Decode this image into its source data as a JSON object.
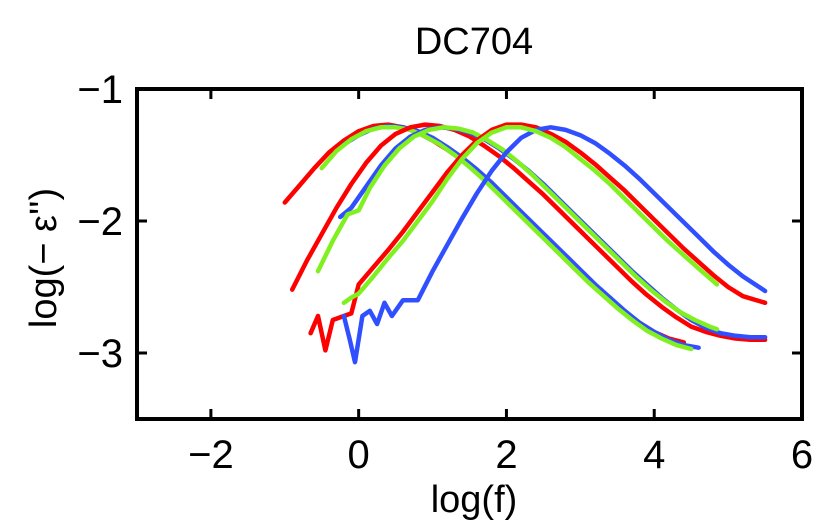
{
  "chart_data": {
    "type": "line",
    "title": "DC704",
    "xlabel": "log(f)",
    "ylabel": "log(− ε'')",
    "xlim": [
      -3,
      6
    ],
    "ylim": [
      -3.5,
      -1
    ],
    "xticks": [
      -2,
      0,
      2,
      4,
      6
    ],
    "yticks": [
      -1,
      -2,
      -3
    ],
    "xtick_labels": [
      "−2",
      "0",
      "2",
      "4",
      "6"
    ],
    "ytick_labels": [
      "−1",
      "−2",
      "−3"
    ],
    "grid": false,
    "legend": null,
    "series": [
      {
        "name": "red-1",
        "color": "#ff0000",
        "points": [
          [
            -1.0,
            -1.86
          ],
          [
            -0.8,
            -1.73
          ],
          [
            -0.6,
            -1.6
          ],
          [
            -0.4,
            -1.48
          ],
          [
            -0.2,
            -1.39
          ],
          [
            0.0,
            -1.32
          ],
          [
            0.2,
            -1.28
          ],
          [
            0.4,
            -1.27
          ],
          [
            0.6,
            -1.29
          ],
          [
            0.8,
            -1.33
          ],
          [
            1.0,
            -1.39
          ],
          [
            1.2,
            -1.46
          ],
          [
            1.4,
            -1.54
          ],
          [
            1.6,
            -1.63
          ],
          [
            1.8,
            -1.73
          ],
          [
            2.0,
            -1.84
          ],
          [
            2.2,
            -1.95
          ],
          [
            2.4,
            -2.06
          ],
          [
            2.6,
            -2.17
          ],
          [
            2.8,
            -2.28
          ],
          [
            3.0,
            -2.39
          ],
          [
            3.2,
            -2.5
          ],
          [
            3.4,
            -2.6
          ],
          [
            3.6,
            -2.69
          ],
          [
            3.8,
            -2.77
          ],
          [
            4.0,
            -2.84
          ],
          [
            4.2,
            -2.89
          ],
          [
            4.4,
            -2.92
          ]
        ]
      },
      {
        "name": "blue-1",
        "color": "#3050ff",
        "points": [
          [
            -0.2,
            -1.42
          ],
          [
            0.0,
            -1.35
          ],
          [
            0.2,
            -1.3
          ],
          [
            0.4,
            -1.28
          ],
          [
            0.6,
            -1.29
          ],
          [
            0.8,
            -1.32
          ],
          [
            1.0,
            -1.37
          ],
          [
            1.2,
            -1.44
          ],
          [
            1.4,
            -1.52
          ],
          [
            1.6,
            -1.61
          ],
          [
            1.8,
            -1.71
          ],
          [
            2.0,
            -1.82
          ],
          [
            2.2,
            -1.93
          ],
          [
            2.4,
            -2.04
          ],
          [
            2.6,
            -2.15
          ],
          [
            2.8,
            -2.26
          ],
          [
            3.0,
            -2.37
          ],
          [
            3.2,
            -2.48
          ],
          [
            3.4,
            -2.58
          ],
          [
            3.6,
            -2.68
          ],
          [
            3.8,
            -2.77
          ],
          [
            4.0,
            -2.84
          ],
          [
            4.2,
            -2.9
          ],
          [
            4.4,
            -2.94
          ],
          [
            4.6,
            -2.96
          ]
        ]
      },
      {
        "name": "green-1",
        "color": "#80f020",
        "points": [
          [
            -0.5,
            -1.6
          ],
          [
            -0.3,
            -1.47
          ],
          [
            -0.1,
            -1.38
          ],
          [
            0.1,
            -1.32
          ],
          [
            0.3,
            -1.29
          ],
          [
            0.5,
            -1.29
          ],
          [
            0.7,
            -1.31
          ],
          [
            0.9,
            -1.36
          ],
          [
            1.1,
            -1.42
          ],
          [
            1.3,
            -1.5
          ],
          [
            1.5,
            -1.59
          ],
          [
            1.7,
            -1.69
          ],
          [
            1.9,
            -1.8
          ],
          [
            2.1,
            -1.91
          ],
          [
            2.3,
            -2.02
          ],
          [
            2.5,
            -2.13
          ],
          [
            2.7,
            -2.24
          ],
          [
            2.9,
            -2.35
          ],
          [
            3.1,
            -2.46
          ],
          [
            3.3,
            -2.56
          ],
          [
            3.5,
            -2.66
          ],
          [
            3.7,
            -2.75
          ],
          [
            3.9,
            -2.83
          ],
          [
            4.1,
            -2.89
          ],
          [
            4.3,
            -2.94
          ],
          [
            4.5,
            -2.97
          ]
        ]
      },
      {
        "name": "red-2",
        "color": "#ff0000",
        "points": [
          [
            -0.9,
            -2.52
          ],
          [
            -0.7,
            -2.3
          ],
          [
            -0.5,
            -2.1
          ],
          [
            -0.3,
            -1.9
          ],
          [
            -0.1,
            -1.72
          ],
          [
            0.1,
            -1.56
          ],
          [
            0.3,
            -1.43
          ],
          [
            0.5,
            -1.34
          ],
          [
            0.7,
            -1.29
          ],
          [
            0.9,
            -1.27
          ],
          [
            1.1,
            -1.28
          ],
          [
            1.3,
            -1.31
          ],
          [
            1.5,
            -1.36
          ],
          [
            1.7,
            -1.43
          ],
          [
            1.9,
            -1.51
          ],
          [
            2.1,
            -1.6
          ],
          [
            2.3,
            -1.7
          ],
          [
            2.5,
            -1.8
          ],
          [
            2.7,
            -1.91
          ],
          [
            2.9,
            -2.02
          ],
          [
            3.1,
            -2.13
          ],
          [
            3.3,
            -2.24
          ],
          [
            3.5,
            -2.35
          ],
          [
            3.7,
            -2.46
          ],
          [
            3.9,
            -2.56
          ],
          [
            4.1,
            -2.65
          ],
          [
            4.3,
            -2.73
          ],
          [
            4.5,
            -2.8
          ],
          [
            4.7,
            -2.84
          ],
          [
            4.9,
            -2.87
          ],
          [
            5.1,
            -2.89
          ],
          [
            5.3,
            -2.9
          ],
          [
            5.5,
            -2.9
          ]
        ]
      },
      {
        "name": "blue-2",
        "color": "#3050ff",
        "points": [
          [
            -0.25,
            -1.97
          ],
          [
            -0.1,
            -1.9
          ],
          [
            0.1,
            -1.74
          ],
          [
            0.3,
            -1.58
          ],
          [
            0.5,
            -1.45
          ],
          [
            0.7,
            -1.36
          ],
          [
            0.9,
            -1.31
          ],
          [
            1.1,
            -1.29
          ],
          [
            1.3,
            -1.3
          ],
          [
            1.5,
            -1.33
          ],
          [
            1.7,
            -1.38
          ],
          [
            1.9,
            -1.45
          ],
          [
            2.1,
            -1.53
          ],
          [
            2.3,
            -1.62
          ],
          [
            2.5,
            -1.72
          ],
          [
            2.7,
            -1.83
          ],
          [
            2.9,
            -1.94
          ],
          [
            3.1,
            -2.05
          ],
          [
            3.3,
            -2.16
          ],
          [
            3.5,
            -2.27
          ],
          [
            3.7,
            -2.38
          ],
          [
            3.9,
            -2.48
          ],
          [
            4.1,
            -2.58
          ],
          [
            4.3,
            -2.67
          ],
          [
            4.5,
            -2.75
          ],
          [
            4.7,
            -2.81
          ],
          [
            4.9,
            -2.85
          ],
          [
            5.1,
            -2.87
          ],
          [
            5.3,
            -2.88
          ],
          [
            5.5,
            -2.88
          ]
        ]
      },
      {
        "name": "green-2",
        "color": "#80f020",
        "points": [
          [
            -0.55,
            -2.38
          ],
          [
            -0.35,
            -2.15
          ],
          [
            -0.15,
            -1.95
          ],
          [
            0.0,
            -1.92
          ],
          [
            0.15,
            -1.75
          ],
          [
            0.35,
            -1.58
          ],
          [
            0.55,
            -1.45
          ],
          [
            0.75,
            -1.36
          ],
          [
            0.95,
            -1.31
          ],
          [
            1.15,
            -1.29
          ],
          [
            1.35,
            -1.3
          ],
          [
            1.55,
            -1.33
          ],
          [
            1.75,
            -1.39
          ],
          [
            1.95,
            -1.46
          ],
          [
            2.15,
            -1.55
          ],
          [
            2.35,
            -1.65
          ],
          [
            2.55,
            -1.76
          ],
          [
            2.75,
            -1.87
          ],
          [
            2.95,
            -1.98
          ],
          [
            3.15,
            -2.09
          ],
          [
            3.35,
            -2.2
          ],
          [
            3.55,
            -2.31
          ],
          [
            3.75,
            -2.42
          ],
          [
            3.95,
            -2.52
          ],
          [
            4.15,
            -2.61
          ],
          [
            4.35,
            -2.69
          ],
          [
            4.55,
            -2.75
          ],
          [
            4.75,
            -2.8
          ],
          [
            4.85,
            -2.82
          ]
        ]
      },
      {
        "name": "red-3",
        "color": "#ff0000",
        "points": [
          [
            -0.65,
            -2.85
          ],
          [
            -0.55,
            -2.72
          ],
          [
            -0.45,
            -2.98
          ],
          [
            -0.35,
            -2.75
          ],
          [
            -0.2,
            -2.72
          ],
          [
            -0.1,
            -2.7
          ],
          [
            0.0,
            -2.48
          ],
          [
            0.2,
            -2.35
          ],
          [
            0.4,
            -2.22
          ],
          [
            0.6,
            -2.08
          ],
          [
            0.8,
            -1.93
          ],
          [
            1.0,
            -1.78
          ],
          [
            1.2,
            -1.63
          ],
          [
            1.4,
            -1.5
          ],
          [
            1.6,
            -1.39
          ],
          [
            1.8,
            -1.31
          ],
          [
            2.0,
            -1.27
          ],
          [
            2.2,
            -1.27
          ],
          [
            2.4,
            -1.29
          ],
          [
            2.6,
            -1.34
          ],
          [
            2.8,
            -1.4
          ],
          [
            3.0,
            -1.48
          ],
          [
            3.2,
            -1.57
          ],
          [
            3.4,
            -1.67
          ],
          [
            3.6,
            -1.77
          ],
          [
            3.8,
            -1.88
          ],
          [
            4.0,
            -1.99
          ],
          [
            4.2,
            -2.1
          ],
          [
            4.4,
            -2.21
          ],
          [
            4.6,
            -2.31
          ],
          [
            4.8,
            -2.41
          ],
          [
            5.0,
            -2.5
          ],
          [
            5.2,
            -2.57
          ],
          [
            5.5,
            -2.62
          ]
        ]
      },
      {
        "name": "blue-3",
        "color": "#3050ff",
        "points": [
          [
            -0.2,
            -2.72
          ],
          [
            -0.12,
            -2.9
          ],
          [
            -0.05,
            -3.07
          ],
          [
            0.05,
            -2.72
          ],
          [
            0.15,
            -2.68
          ],
          [
            0.25,
            -2.78
          ],
          [
            0.35,
            -2.62
          ],
          [
            0.45,
            -2.72
          ],
          [
            0.6,
            -2.6
          ],
          [
            0.8,
            -2.6
          ],
          [
            1.0,
            -2.38
          ],
          [
            1.2,
            -2.18
          ],
          [
            1.4,
            -1.98
          ],
          [
            1.6,
            -1.79
          ],
          [
            1.8,
            -1.62
          ],
          [
            2.0,
            -1.48
          ],
          [
            2.2,
            -1.37
          ],
          [
            2.4,
            -1.31
          ],
          [
            2.6,
            -1.29
          ],
          [
            2.8,
            -1.31
          ],
          [
            3.0,
            -1.35
          ],
          [
            3.2,
            -1.41
          ],
          [
            3.4,
            -1.49
          ],
          [
            3.6,
            -1.58
          ],
          [
            3.8,
            -1.68
          ],
          [
            4.0,
            -1.79
          ],
          [
            4.2,
            -1.9
          ],
          [
            4.4,
            -2.01
          ],
          [
            4.6,
            -2.12
          ],
          [
            4.8,
            -2.23
          ],
          [
            5.0,
            -2.33
          ],
          [
            5.2,
            -2.42
          ],
          [
            5.5,
            -2.53
          ]
        ]
      },
      {
        "name": "green-3",
        "color": "#80f020",
        "points": [
          [
            -0.2,
            -2.62
          ],
          [
            -0.1,
            -2.58
          ],
          [
            0.0,
            -2.55
          ],
          [
            0.2,
            -2.42
          ],
          [
            0.4,
            -2.28
          ],
          [
            0.6,
            -2.15
          ],
          [
            0.8,
            -2.0
          ],
          [
            1.0,
            -1.85
          ],
          [
            1.2,
            -1.68
          ],
          [
            1.4,
            -1.53
          ],
          [
            1.6,
            -1.41
          ],
          [
            1.8,
            -1.33
          ],
          [
            2.0,
            -1.29
          ],
          [
            2.2,
            -1.29
          ],
          [
            2.4,
            -1.32
          ],
          [
            2.6,
            -1.37
          ],
          [
            2.8,
            -1.44
          ],
          [
            3.0,
            -1.53
          ],
          [
            3.2,
            -1.62
          ],
          [
            3.4,
            -1.72
          ],
          [
            3.6,
            -1.83
          ],
          [
            3.8,
            -1.94
          ],
          [
            4.0,
            -2.05
          ],
          [
            4.2,
            -2.16
          ],
          [
            4.4,
            -2.26
          ],
          [
            4.6,
            -2.36
          ],
          [
            4.85,
            -2.48
          ]
        ]
      }
    ]
  }
}
